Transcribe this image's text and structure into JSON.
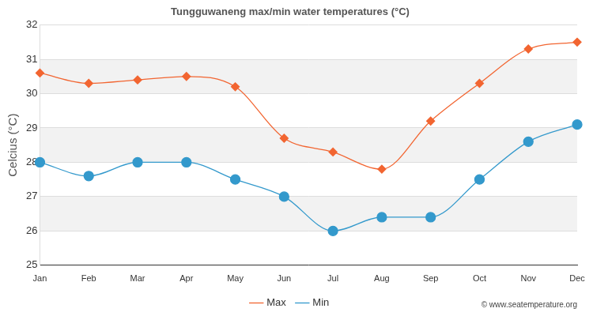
{
  "chart_data": {
    "type": "line",
    "title": "Tungguwaneng max/min water temperatures (°C)",
    "y_label": "Celcius (°C)",
    "annotation": "© www.seatemperature.org",
    "categories": [
      "Jan",
      "Feb",
      "Mar",
      "Apr",
      "May",
      "Jun",
      "Jul",
      "Aug",
      "Sep",
      "Oct",
      "Nov",
      "Dec"
    ],
    "series": [
      {
        "name": "Max",
        "color": "#f26531",
        "marker": "diamond",
        "line_style": "solid",
        "values": [
          30.6,
          30.3,
          30.4,
          30.5,
          30.2,
          28.7,
          28.3,
          27.8,
          29.2,
          30.3,
          31.3,
          31.5
        ]
      },
      {
        "name": "Min",
        "color": "#3399cc",
        "marker": "circle",
        "line_style": "solid",
        "values": [
          28.0,
          27.6,
          28.0,
          28.0,
          27.5,
          27.0,
          26.0,
          26.4,
          26.4,
          27.5,
          28.6,
          29.1
        ]
      }
    ],
    "ylim": [
      25,
      32
    ],
    "yticks": [
      25,
      26,
      27,
      28,
      29,
      30,
      31,
      32
    ],
    "grid": true,
    "legend": "bottom"
  }
}
